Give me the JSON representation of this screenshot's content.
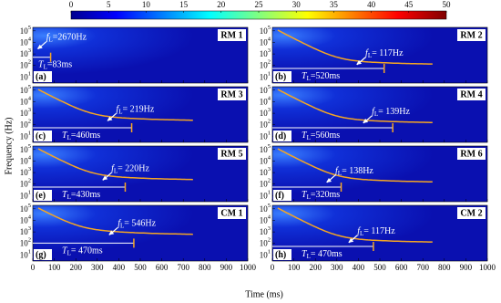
{
  "chart_data": {
    "type": "spectrogram",
    "xlabel": "Time (ms)",
    "ylabel": "Frequency (Hz)",
    "xlim": [
      0,
      1000
    ],
    "xticks": [
      0,
      100,
      200,
      300,
      400,
      500,
      600,
      700,
      800,
      900,
      1000
    ],
    "ylim": [
      3,
      200000
    ],
    "yticks": [
      {
        "value": 10,
        "label": "10",
        "exponent": "1"
      },
      {
        "value": 100,
        "label": "10",
        "exponent": "2"
      },
      {
        "value": 1000,
        "label": "10",
        "exponent": "3"
      },
      {
        "value": 10000,
        "label": "10",
        "exponent": "4"
      },
      {
        "value": 100000,
        "label": "10",
        "exponent": "5"
      }
    ],
    "colorbar": {
      "lim": [
        0,
        50
      ],
      "ticks": [
        0,
        5,
        10,
        15,
        20,
        25,
        30,
        35,
        40,
        45,
        50
      ]
    },
    "symbols": {
      "f": "f",
      "T": "T",
      "sub": "L"
    },
    "panels": [
      {
        "tag": "(a)",
        "name": "RM 1",
        "fL": {
          "value": 2670,
          "label": "=2670Hz"
        },
        "TL": {
          "value": 83,
          "label": "=83ms"
        }
      },
      {
        "tag": "(b)",
        "name": "RM 2",
        "fL": {
          "value": 117,
          "label": "= 117Hz"
        },
        "TL": {
          "value": 520,
          "label": "=520ms"
        }
      },
      {
        "tag": "(c)",
        "name": "RM 3",
        "fL": {
          "value": 219,
          "label": "= 219Hz"
        },
        "TL": {
          "value": 460,
          "label": "=460ms"
        }
      },
      {
        "tag": "(d)",
        "name": "RM 4",
        "fL": {
          "value": 139,
          "label": "= 139Hz"
        },
        "TL": {
          "value": 560,
          "label": "=560ms"
        }
      },
      {
        "tag": "(e)",
        "name": "RM 5",
        "fL": {
          "value": 220,
          "label": "= 220Hz"
        },
        "TL": {
          "value": 430,
          "label": "=430ms"
        }
      },
      {
        "tag": "(f)",
        "name": "RM 6",
        "fL": {
          "value": 138,
          "label": "= 138Hz"
        },
        "TL": {
          "value": 320,
          "label": "=320ms"
        }
      },
      {
        "tag": "(g)",
        "name": "CM 1",
        "fL": {
          "value": 546,
          "label": "= 546Hz"
        },
        "TL": {
          "value": 470,
          "label": "= 470ms"
        }
      },
      {
        "tag": "(h)",
        "name": "CM 2",
        "fL": {
          "value": 117,
          "label": "= 117Hz"
        },
        "TL": {
          "value": 470,
          "label": "= 470ms"
        }
      }
    ]
  }
}
